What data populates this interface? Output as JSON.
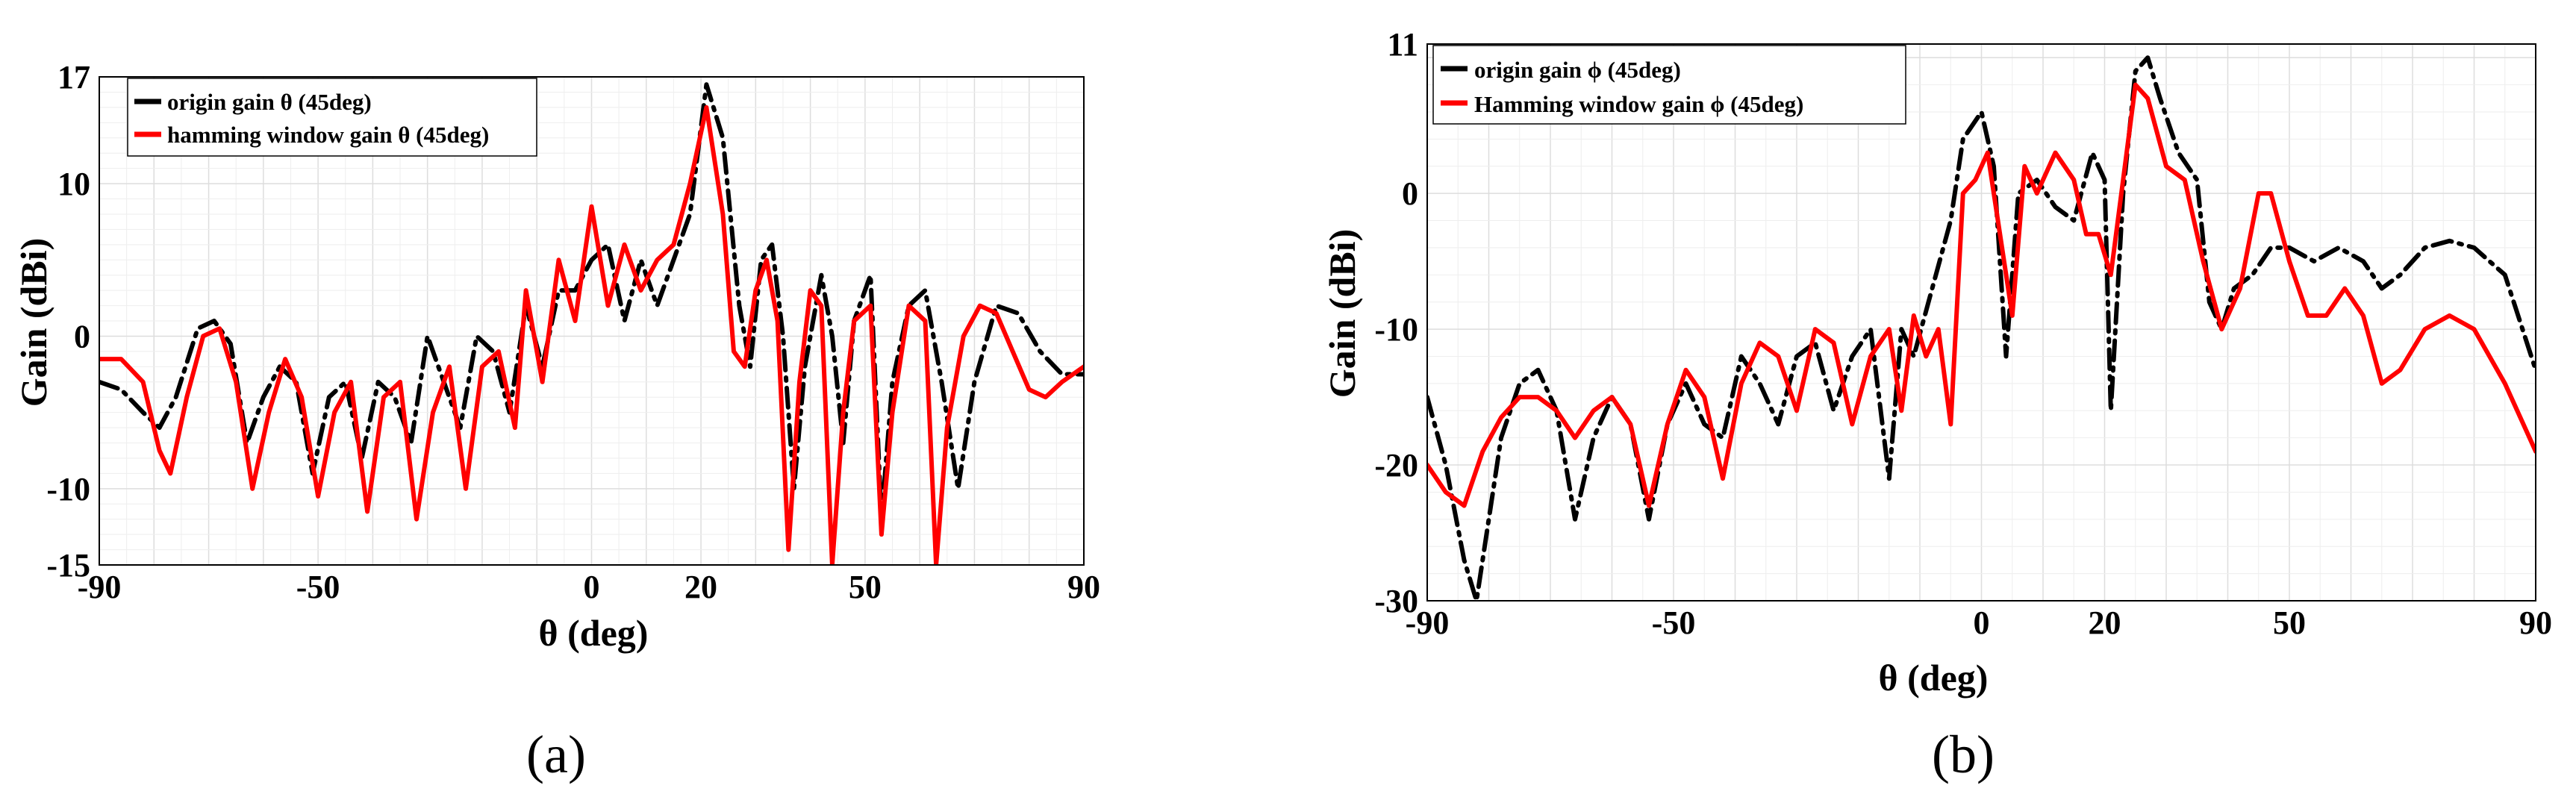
{
  "chart_data": [
    {
      "type": "line",
      "panel_label": "(a)",
      "xlabel": "θ (deg)",
      "ylabel": "Gain (dBi)",
      "xlim": [
        -90,
        90
      ],
      "ylim": [
        -15,
        17
      ],
      "xticks": [
        -90,
        -50,
        0,
        20,
        50,
        90
      ],
      "yticks": [
        -15,
        -10,
        0,
        10,
        17
      ],
      "grid": true,
      "legend": "top-left",
      "series": [
        {
          "name": "origin gain θ (45deg)",
          "color": "#000000",
          "dash": "dashdot",
          "points": [
            [
              -90,
              -3
            ],
            [
              -86,
              -3.5
            ],
            [
              -82,
              -5
            ],
            [
              -79,
              -6
            ],
            [
              -76,
              -4
            ],
            [
              -72,
              0.5
            ],
            [
              -69,
              1
            ],
            [
              -66,
              -0.5
            ],
            [
              -63,
              -7
            ],
            [
              -60,
              -4
            ],
            [
              -57,
              -2
            ],
            [
              -54,
              -3
            ],
            [
              -51,
              -9
            ],
            [
              -48,
              -4
            ],
            [
              -45,
              -3
            ],
            [
              -42,
              -8
            ],
            [
              -39,
              -3
            ],
            [
              -36,
              -4
            ],
            [
              -33,
              -7
            ],
            [
              -30,
              0
            ],
            [
              -27,
              -3
            ],
            [
              -24,
              -6
            ],
            [
              -21,
              0
            ],
            [
              -18,
              -1
            ],
            [
              -15,
              -5
            ],
            [
              -12,
              2
            ],
            [
              -9,
              -2
            ],
            [
              -6,
              3
            ],
            [
              -3,
              3
            ],
            [
              0,
              5
            ],
            [
              3,
              6
            ],
            [
              6,
              1
            ],
            [
              9,
              5
            ],
            [
              12,
              2
            ],
            [
              15,
              5
            ],
            [
              18,
              8
            ],
            [
              21,
              16.5
            ],
            [
              24,
              13
            ],
            [
              27,
              2
            ],
            [
              29,
              -2
            ],
            [
              31,
              5
            ],
            [
              33,
              6
            ],
            [
              35,
              0
            ],
            [
              37,
              -10
            ],
            [
              39,
              -2
            ],
            [
              42,
              4
            ],
            [
              44,
              0
            ],
            [
              46,
              -7
            ],
            [
              48,
              1
            ],
            [
              51,
              4
            ],
            [
              53,
              -12
            ],
            [
              55,
              -3
            ],
            [
              58,
              2
            ],
            [
              61,
              3
            ],
            [
              64,
              -3
            ],
            [
              67,
              -10
            ],
            [
              70,
              -3
            ],
            [
              74,
              2
            ],
            [
              78,
              1.5
            ],
            [
              82,
              -1
            ],
            [
              86,
              -2.5
            ],
            [
              90,
              -2.5
            ]
          ]
        },
        {
          "name": "hamming window gain θ (45deg)",
          "color": "#ff0000",
          "dash": "solid",
          "points": [
            [
              -90,
              -1.5
            ],
            [
              -86,
              -1.5
            ],
            [
              -82,
              -3
            ],
            [
              -79,
              -7.5
            ],
            [
              -77,
              -9
            ],
            [
              -74,
              -4
            ],
            [
              -71,
              0
            ],
            [
              -68,
              0.5
            ],
            [
              -65,
              -3
            ],
            [
              -62,
              -10
            ],
            [
              -59,
              -5
            ],
            [
              -56,
              -1.5
            ],
            [
              -53,
              -4
            ],
            [
              -50,
              -10.5
            ],
            [
              -47,
              -5
            ],
            [
              -44,
              -3
            ],
            [
              -41,
              -11.5
            ],
            [
              -38,
              -4
            ],
            [
              -35,
              -3
            ],
            [
              -32,
              -12
            ],
            [
              -29,
              -5
            ],
            [
              -26,
              -2
            ],
            [
              -23,
              -10
            ],
            [
              -20,
              -2
            ],
            [
              -17,
              -1
            ],
            [
              -14,
              -6
            ],
            [
              -12,
              3
            ],
            [
              -9,
              -3
            ],
            [
              -6,
              5
            ],
            [
              -3,
              1
            ],
            [
              0,
              8.5
            ],
            [
              3,
              2
            ],
            [
              6,
              6
            ],
            [
              9,
              3
            ],
            [
              12,
              5
            ],
            [
              15,
              6
            ],
            [
              18,
              10
            ],
            [
              21,
              15
            ],
            [
              24,
              8
            ],
            [
              26,
              -1
            ],
            [
              28,
              -2
            ],
            [
              30,
              3
            ],
            [
              32,
              5
            ],
            [
              34,
              1
            ],
            [
              36,
              -14
            ],
            [
              38,
              -3
            ],
            [
              40,
              3
            ],
            [
              42,
              2
            ],
            [
              44,
              -15
            ],
            [
              46,
              -5
            ],
            [
              48,
              1
            ],
            [
              51,
              2
            ],
            [
              53,
              -13
            ],
            [
              55,
              -5
            ],
            [
              58,
              2
            ],
            [
              61,
              1
            ],
            [
              63,
              -15
            ],
            [
              65,
              -6
            ],
            [
              68,
              0
            ],
            [
              71,
              2
            ],
            [
              74,
              1.5
            ],
            [
              77,
              -1
            ],
            [
              80,
              -3.5
            ],
            [
              83,
              -4
            ],
            [
              86,
              -3
            ],
            [
              90,
              -2
            ]
          ]
        }
      ]
    },
    {
      "type": "line",
      "panel_label": "(b)",
      "xlabel": "θ (deg)",
      "ylabel": "Gain (dBi)",
      "xlim": [
        -90,
        90
      ],
      "ylim": [
        -30,
        11
      ],
      "xticks": [
        -90,
        -50,
        0,
        20,
        50,
        90
      ],
      "yticks": [
        -30,
        -20,
        -10,
        0,
        11
      ],
      "grid": true,
      "legend": "top-left",
      "series": [
        {
          "name": "origin gain ϕ (45deg)",
          "color": "#000000",
          "dash": "dashdot",
          "points": [
            [
              -90,
              -15
            ],
            [
              -87,
              -20
            ],
            [
              -84,
              -27
            ],
            [
              -82,
              -30
            ],
            [
              -80,
              -24
            ],
            [
              -78,
              -18
            ],
            [
              -75,
              -14
            ],
            [
              -72,
              -13
            ],
            [
              -69,
              -16
            ],
            [
              -66,
              -24
            ],
            [
              -63,
              -18
            ],
            [
              -60,
              -15
            ],
            [
              -57,
              -17
            ],
            [
              -54,
              -24
            ],
            [
              -51,
              -17
            ],
            [
              -48,
              -14
            ],
            [
              -45,
              -17
            ],
            [
              -42,
              -18
            ],
            [
              -39,
              -12
            ],
            [
              -36,
              -14
            ],
            [
              -33,
              -17
            ],
            [
              -30,
              -12
            ],
            [
              -27,
              -11
            ],
            [
              -24,
              -16
            ],
            [
              -21,
              -12
            ],
            [
              -18,
              -10
            ],
            [
              -15,
              -21
            ],
            [
              -13,
              -10
            ],
            [
              -11,
              -12
            ],
            [
              -8,
              -7
            ],
            [
              -5,
              -2
            ],
            [
              -3,
              4
            ],
            [
              0,
              6
            ],
            [
              2,
              2
            ],
            [
              4,
              -12
            ],
            [
              6,
              0
            ],
            [
              9,
              1
            ],
            [
              12,
              -1
            ],
            [
              15,
              -2
            ],
            [
              18,
              3
            ],
            [
              20,
              1
            ],
            [
              21,
              -16
            ],
            [
              23,
              0
            ],
            [
              25,
              9
            ],
            [
              27,
              10
            ],
            [
              29,
              7
            ],
            [
              32,
              3
            ],
            [
              35,
              1
            ],
            [
              37,
              -8
            ],
            [
              39,
              -10
            ],
            [
              41,
              -7
            ],
            [
              44,
              -6
            ],
            [
              47,
              -4
            ],
            [
              50,
              -4
            ],
            [
              54,
              -5
            ],
            [
              58,
              -4
            ],
            [
              62,
              -5
            ],
            [
              65,
              -7
            ],
            [
              68,
              -6
            ],
            [
              72,
              -4
            ],
            [
              76,
              -3.5
            ],
            [
              80,
              -4
            ],
            [
              85,
              -6
            ],
            [
              90,
              -13
            ]
          ]
        },
        {
          "name": "Hamming window gain ϕ (45deg)",
          "color": "#ff0000",
          "dash": "solid",
          "points": [
            [
              -90,
              -20
            ],
            [
              -87,
              -22
            ],
            [
              -84,
              -23
            ],
            [
              -81,
              -19
            ],
            [
              -78,
              -16.5
            ],
            [
              -75,
              -15
            ],
            [
              -72,
              -15
            ],
            [
              -69,
              -16
            ],
            [
              -66,
              -18
            ],
            [
              -63,
              -16
            ],
            [
              -60,
              -15
            ],
            [
              -57,
              -17
            ],
            [
              -54,
              -23
            ],
            [
              -51,
              -17
            ],
            [
              -48,
              -13
            ],
            [
              -45,
              -15
            ],
            [
              -42,
              -21
            ],
            [
              -39,
              -14
            ],
            [
              -36,
              -11
            ],
            [
              -33,
              -12
            ],
            [
              -30,
              -16
            ],
            [
              -27,
              -10
            ],
            [
              -24,
              -11
            ],
            [
              -21,
              -17
            ],
            [
              -18,
              -12
            ],
            [
              -15,
              -10
            ],
            [
              -13,
              -16
            ],
            [
              -11,
              -9
            ],
            [
              -9,
              -12
            ],
            [
              -7,
              -10
            ],
            [
              -5,
              -17
            ],
            [
              -3,
              0
            ],
            [
              -1,
              1
            ],
            [
              1,
              3
            ],
            [
              3,
              -3
            ],
            [
              5,
              -9
            ],
            [
              7,
              2
            ],
            [
              9,
              0
            ],
            [
              12,
              3
            ],
            [
              15,
              1
            ],
            [
              17,
              -3
            ],
            [
              19,
              -3
            ],
            [
              21,
              -6
            ],
            [
              23,
              1
            ],
            [
              25,
              8
            ],
            [
              27,
              7
            ],
            [
              30,
              2
            ],
            [
              33,
              1
            ],
            [
              36,
              -5
            ],
            [
              39,
              -10
            ],
            [
              42,
              -7
            ],
            [
              45,
              0
            ],
            [
              47,
              0
            ],
            [
              50,
              -5
            ],
            [
              53,
              -9
            ],
            [
              56,
              -9
            ],
            [
              59,
              -7
            ],
            [
              62,
              -9
            ],
            [
              65,
              -14
            ],
            [
              68,
              -13
            ],
            [
              72,
              -10
            ],
            [
              76,
              -9
            ],
            [
              80,
              -10
            ],
            [
              85,
              -14
            ],
            [
              90,
              -19
            ]
          ]
        }
      ]
    }
  ]
}
